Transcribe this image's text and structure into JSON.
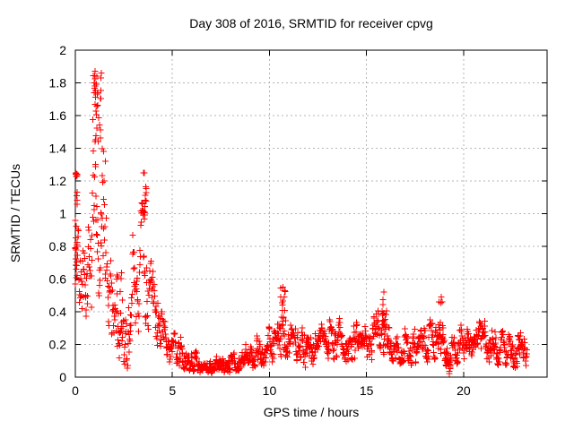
{
  "window": {
    "background": "#ffffff"
  },
  "chart_data": {
    "type": "scatter",
    "title": "Day 308 of 2016, SRMTID for receiver cpvg",
    "xlabel": "GPS time / hours",
    "ylabel": "SRMTID / TECUs",
    "xlim": [
      0,
      24.3
    ],
    "ylim": [
      0,
      2
    ],
    "xticks": {
      "values": [
        0,
        5,
        10,
        15,
        20
      ],
      "labels": [
        "0",
        "5",
        "10",
        "15",
        "20"
      ]
    },
    "yticks": {
      "values": [
        0,
        0.2,
        0.4,
        0.6,
        0.8,
        1,
        1.2,
        1.4,
        1.6,
        1.8,
        2
      ],
      "labels": [
        "0",
        "0.2",
        "0.4",
        "0.6",
        "0.8",
        "1",
        "1.2",
        "1.4",
        "1.6",
        "1.8",
        "2"
      ]
    },
    "grid": {
      "show": true,
      "color": "#b5b5b5",
      "dash": [
        2,
        3
      ]
    },
    "frame_color": "#000000",
    "tick_length": 6,
    "marker": {
      "shape": "plus",
      "color": "#ff0000",
      "size": 7,
      "stroke_width": 1
    },
    "series": [
      {
        "name": "SRMTID",
        "sampling": {
          "x_start": 0.005,
          "x_end": 23.28,
          "step": 0.016,
          "seed": 3082016,
          "ar": 0.72,
          "noise_scale": 0.7
        },
        "envelope": [
          [
            0.0,
            0.85,
            0.2,
            0.3,
            1.28
          ],
          [
            0.3,
            0.62,
            0.18,
            0.28,
            1.05
          ],
          [
            0.7,
            0.78,
            0.2,
            0.35,
            1.45
          ],
          [
            1.0,
            0.95,
            0.28,
            0.5,
            1.45
          ],
          [
            1.3,
            0.85,
            0.24,
            0.45,
            1.35
          ],
          [
            1.6,
            0.7,
            0.2,
            0.35,
            1.1
          ],
          [
            1.9,
            0.5,
            0.15,
            0.18,
            0.85
          ],
          [
            2.2,
            0.3,
            0.14,
            0.06,
            0.66
          ],
          [
            2.6,
            0.28,
            0.15,
            0.04,
            0.7
          ],
          [
            3.0,
            0.45,
            0.2,
            0.06,
            0.95
          ],
          [
            3.35,
            0.65,
            0.2,
            0.3,
            1.05
          ],
          [
            3.55,
            0.75,
            0.2,
            0.35,
            1.15
          ],
          [
            3.8,
            0.55,
            0.16,
            0.25,
            0.9
          ],
          [
            4.1,
            0.38,
            0.12,
            0.16,
            0.65
          ],
          [
            4.5,
            0.25,
            0.08,
            0.1,
            0.45
          ],
          [
            5.0,
            0.15,
            0.06,
            0.05,
            0.3
          ],
          [
            5.5,
            0.15,
            0.07,
            0.05,
            0.32
          ],
          [
            6.0,
            0.1,
            0.05,
            0.03,
            0.22
          ],
          [
            6.5,
            0.06,
            0.03,
            0.02,
            0.13
          ],
          [
            7.2,
            0.06,
            0.03,
            0.02,
            0.13
          ],
          [
            8.0,
            0.08,
            0.04,
            0.03,
            0.17
          ],
          [
            8.7,
            0.1,
            0.04,
            0.04,
            0.2
          ],
          [
            9.3,
            0.13,
            0.05,
            0.05,
            0.25
          ],
          [
            9.8,
            0.17,
            0.06,
            0.07,
            0.3
          ],
          [
            10.3,
            0.2,
            0.07,
            0.08,
            0.38
          ],
          [
            10.65,
            0.28,
            0.09,
            0.1,
            0.55
          ],
          [
            11.0,
            0.22,
            0.07,
            0.08,
            0.4
          ],
          [
            11.5,
            0.18,
            0.06,
            0.05,
            0.32
          ],
          [
            12.0,
            0.19,
            0.06,
            0.06,
            0.33
          ],
          [
            12.8,
            0.21,
            0.06,
            0.09,
            0.36
          ],
          [
            13.3,
            0.22,
            0.07,
            0.09,
            0.38
          ],
          [
            14.0,
            0.2,
            0.06,
            0.08,
            0.34
          ],
          [
            14.7,
            0.21,
            0.06,
            0.09,
            0.35
          ],
          [
            15.4,
            0.24,
            0.07,
            0.1,
            0.42
          ],
          [
            15.9,
            0.27,
            0.08,
            0.11,
            0.52
          ],
          [
            16.4,
            0.21,
            0.06,
            0.09,
            0.36
          ],
          [
            17.2,
            0.19,
            0.06,
            0.07,
            0.32
          ],
          [
            18.0,
            0.21,
            0.06,
            0.09,
            0.36
          ],
          [
            18.8,
            0.25,
            0.08,
            0.1,
            0.49
          ],
          [
            19.2,
            0.13,
            0.07,
            0.02,
            0.3
          ],
          [
            19.6,
            0.18,
            0.06,
            0.07,
            0.31
          ],
          [
            20.3,
            0.21,
            0.06,
            0.09,
            0.35
          ],
          [
            21.0,
            0.22,
            0.06,
            0.1,
            0.37
          ],
          [
            21.7,
            0.18,
            0.06,
            0.07,
            0.31
          ],
          [
            22.4,
            0.17,
            0.06,
            0.06,
            0.3
          ],
          [
            23.0,
            0.16,
            0.06,
            0.05,
            0.28
          ],
          [
            23.28,
            0.15,
            0.06,
            0.05,
            0.26
          ]
        ],
        "clusters": [
          [
            0.0,
            0.12,
            0.55,
            1.27,
            22
          ],
          [
            0.9,
            1.35,
            1.5,
            1.87,
            26
          ],
          [
            1.0,
            1.6,
            1.3,
            1.56,
            7
          ],
          [
            2.1,
            2.4,
            0.5,
            0.66,
            5
          ],
          [
            3.45,
            3.65,
            0.95,
            1.26,
            12
          ],
          [
            10.55,
            10.85,
            0.3,
            0.55,
            12
          ],
          [
            15.8,
            16.05,
            0.3,
            0.52,
            8
          ],
          [
            18.7,
            18.95,
            0.3,
            0.49,
            7
          ],
          [
            19.05,
            19.35,
            0.02,
            0.1,
            8
          ]
        ],
        "peak_points": [
          [
            0.03,
            1.25
          ],
          [
            0.97,
            1.8
          ],
          [
            1.02,
            1.87
          ],
          [
            1.1,
            1.84
          ],
          [
            3.55,
            1.25
          ],
          [
            10.7,
            0.55
          ],
          [
            15.9,
            0.52
          ],
          [
            18.85,
            0.49
          ]
        ]
      }
    ]
  }
}
